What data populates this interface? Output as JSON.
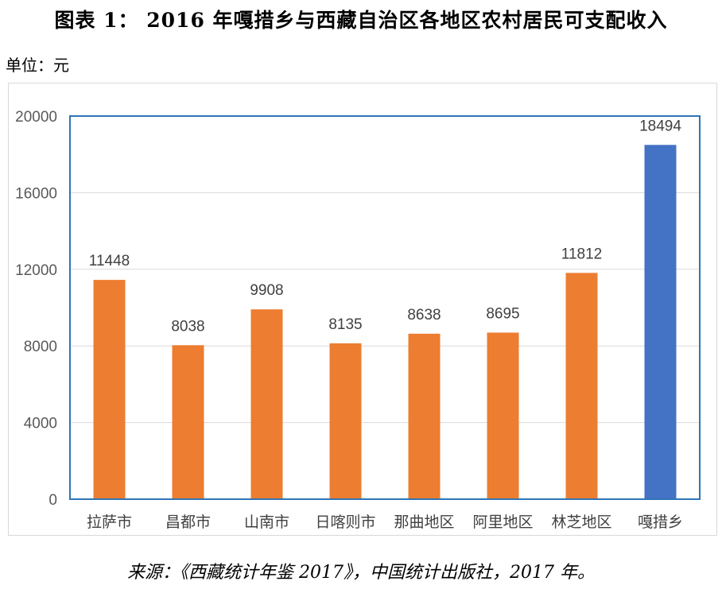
{
  "title": "图表 1：  2016 年嘎措乡与西藏自治区各地区农村居民可支配收入",
  "unit_label": "单位：元",
  "source": "来源：《西藏统计年鉴 2017》，中国统计出版社，2017 年。",
  "chart_data": {
    "type": "bar",
    "categories": [
      "拉萨市",
      "昌都市",
      "山南市",
      "日喀则市",
      "那曲地区",
      "阿里地区",
      "林芝地区",
      "嘎措乡"
    ],
    "values": [
      11448,
      8038,
      9908,
      8135,
      8638,
      8695,
      11812,
      18494
    ],
    "bar_colors": [
      "#ED7D31",
      "#ED7D31",
      "#ED7D31",
      "#ED7D31",
      "#ED7D31",
      "#ED7D31",
      "#ED7D31",
      "#4472C4"
    ],
    "data_labels": [
      "11448",
      "8038",
      "9908",
      "8135",
      "8638",
      "8695",
      "11812",
      "18494"
    ],
    "yticks": [
      "0",
      "4000",
      "8000",
      "12000",
      "16000",
      "20000"
    ],
    "ylim": [
      0,
      20000
    ],
    "grid": true,
    "plot_border_color": "#2E75B6",
    "title": "",
    "xlabel": "",
    "ylabel": ""
  }
}
